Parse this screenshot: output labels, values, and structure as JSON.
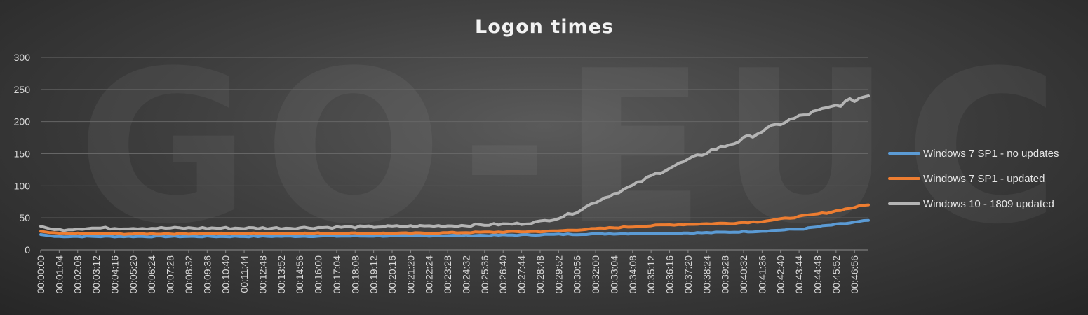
{
  "chart_data": {
    "type": "line",
    "title": "Logon times",
    "watermark": "GO-EUC",
    "xlabel": "",
    "ylabel": "",
    "ylim": [
      0,
      300
    ],
    "y_ticks": [
      0,
      50,
      100,
      150,
      200,
      250,
      300
    ],
    "grid": true,
    "legend_position": "right",
    "x_tick_labels": [
      "00:00:00",
      "00:01:04",
      "00:02:08",
      "00:03:12",
      "00:04:16",
      "00:05:20",
      "00:06:24",
      "00:07:28",
      "00:08:32",
      "00:09:36",
      "00:10:40",
      "00:11:44",
      "00:12:48",
      "00:13:52",
      "00:14:56",
      "00:16:00",
      "00:17:04",
      "00:18:08",
      "00:19:12",
      "00:20:16",
      "00:21:20",
      "00:22:24",
      "00:23:28",
      "00:24:32",
      "00:25:36",
      "00:26:40",
      "00:27:44",
      "00:28:48",
      "00:29:52",
      "00:30:56",
      "00:32:00",
      "00:33:04",
      "00:34:08",
      "00:35:12",
      "00:36:16",
      "00:37:20",
      "00:38:24",
      "00:39:28",
      "00:40:32",
      "00:41:36",
      "00:42:40",
      "00:43:44",
      "00:44:48",
      "00:45:52",
      "00:46:56"
    ],
    "num_points": 180,
    "series": [
      {
        "name": "Windows 7 SP1 - no updates",
        "color": "#5b9bd5",
        "keypoints": [
          [
            0,
            24
          ],
          [
            3,
            21
          ],
          [
            10,
            21
          ],
          [
            40,
            21
          ],
          [
            80,
            22
          ],
          [
            100,
            23
          ],
          [
            110,
            24
          ],
          [
            120,
            25
          ],
          [
            135,
            26
          ],
          [
            145,
            27
          ],
          [
            155,
            29
          ],
          [
            160,
            31
          ],
          [
            165,
            33
          ],
          [
            170,
            38
          ],
          [
            175,
            42
          ],
          [
            179,
            46
          ]
        ]
      },
      {
        "name": "Windows 7 SP1 - updated",
        "color": "#ed7d31",
        "keypoints": [
          [
            0,
            29
          ],
          [
            3,
            26
          ],
          [
            20,
            25
          ],
          [
            50,
            26
          ],
          [
            80,
            26
          ],
          [
            100,
            28
          ],
          [
            110,
            29
          ],
          [
            115,
            31
          ],
          [
            125,
            35
          ],
          [
            135,
            39
          ],
          [
            145,
            41
          ],
          [
            150,
            42
          ],
          [
            155,
            44
          ],
          [
            160,
            48
          ],
          [
            165,
            53
          ],
          [
            170,
            58
          ],
          [
            175,
            65
          ],
          [
            179,
            71
          ]
        ]
      },
      {
        "name": "Windows 10 - 1809 updated",
        "color": "#b4b4b4",
        "keypoints": [
          [
            0,
            37
          ],
          [
            3,
            31
          ],
          [
            10,
            34
          ],
          [
            50,
            34
          ],
          [
            70,
            36
          ],
          [
            90,
            38
          ],
          [
            100,
            40
          ],
          [
            104,
            41
          ],
          [
            108,
            44
          ],
          [
            112,
            50
          ],
          [
            116,
            60
          ],
          [
            120,
            75
          ],
          [
            124,
            88
          ],
          [
            128,
            100
          ],
          [
            132,
            115
          ],
          [
            136,
            128
          ],
          [
            140,
            140
          ],
          [
            145,
            155
          ],
          [
            150,
            167
          ],
          [
            155,
            182
          ],
          [
            160,
            197
          ],
          [
            165,
            210
          ],
          [
            170,
            220
          ],
          [
            175,
            232
          ],
          [
            179,
            241
          ]
        ]
      }
    ]
  }
}
